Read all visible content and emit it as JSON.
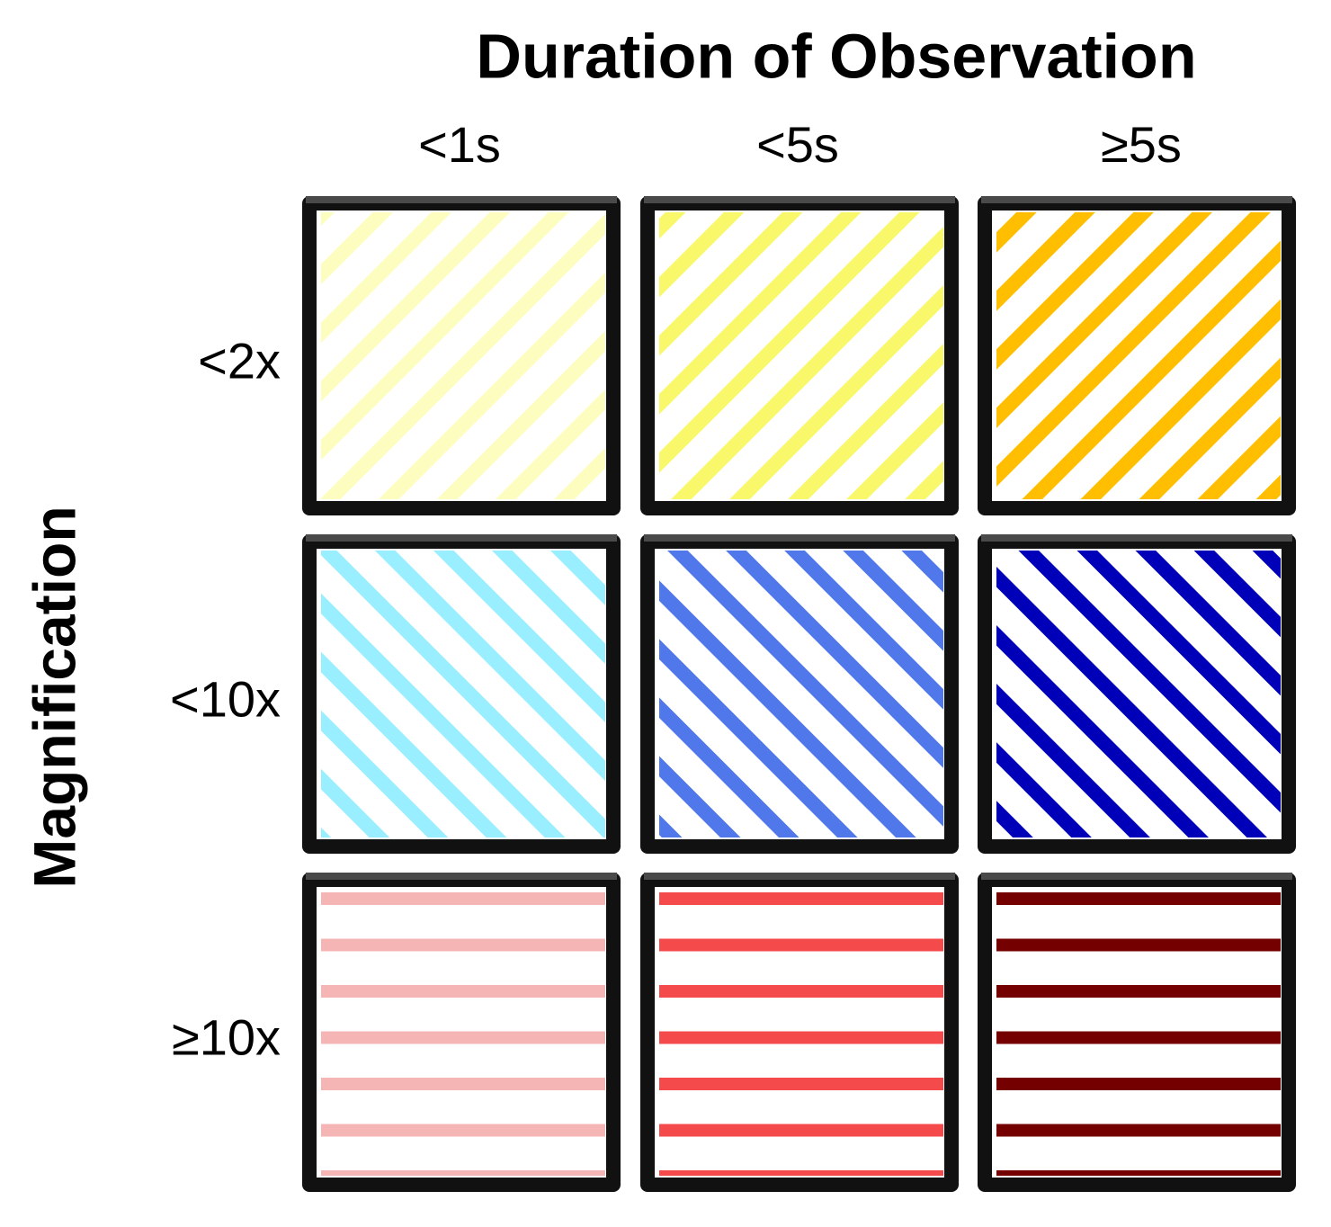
{
  "title": "Duration of Observation",
  "row_axis_label": "Magnification",
  "columns": [
    "<1s",
    "<5s",
    "≥5s"
  ],
  "rows": [
    "<2x",
    "<10x",
    "≥10x"
  ],
  "cells": [
    [
      {
        "color": "#fdfdc0",
        "pattern": "diagonal-down"
      },
      {
        "color": "#f8f86a",
        "pattern": "diagonal-down"
      },
      {
        "color": "#ffbf00",
        "pattern": "diagonal-down"
      }
    ],
    [
      {
        "color": "#99eeff",
        "pattern": "diagonal-up"
      },
      {
        "color": "#5078ea",
        "pattern": "diagonal-up"
      },
      {
        "color": "#0000b8",
        "pattern": "diagonal-up"
      }
    ],
    [
      {
        "color": "#f5b5b5",
        "pattern": "horizontal"
      },
      {
        "color": "#f54a4c",
        "pattern": "horizontal"
      },
      {
        "color": "#740000",
        "pattern": "horizontal"
      }
    ]
  ]
}
